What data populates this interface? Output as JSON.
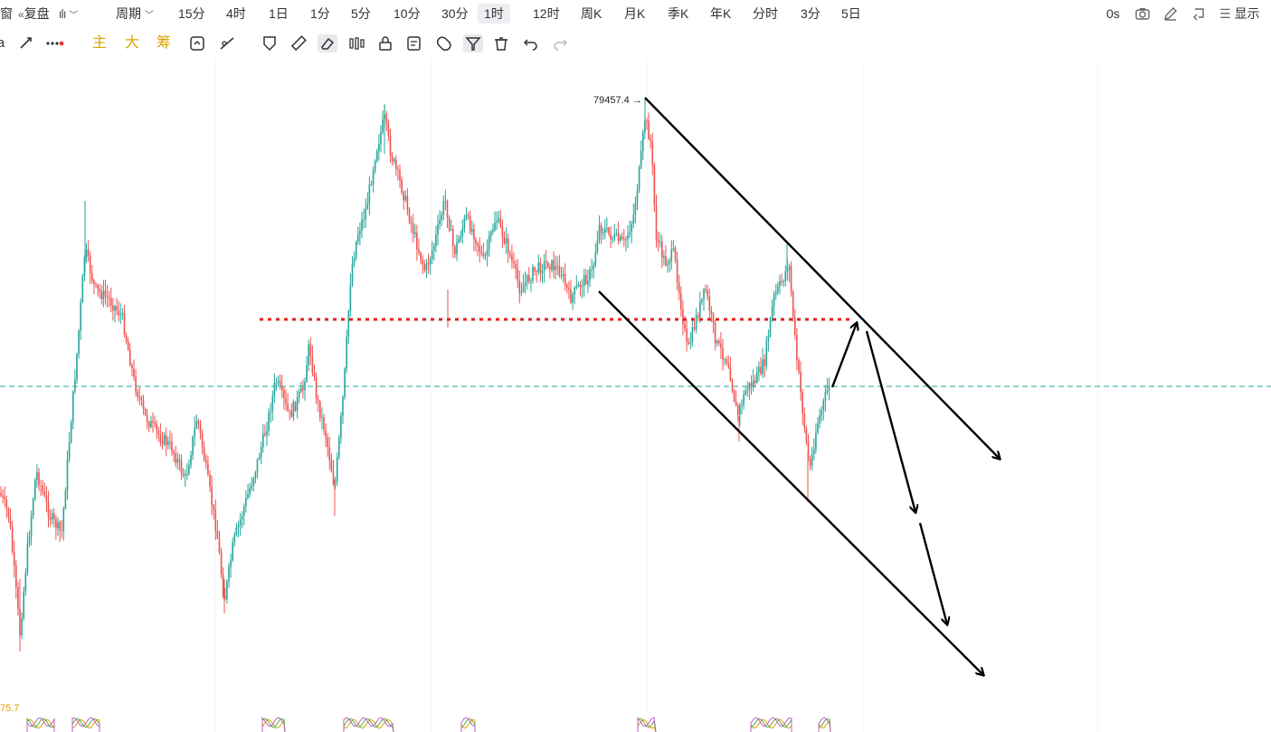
{
  "topbar": {
    "window_label": "窗",
    "replay_label": "复盘",
    "period_label": "周期",
    "intervals": [
      {
        "label": "15分",
        "active": false
      },
      {
        "label": "4时",
        "active": false
      },
      {
        "label": "1日",
        "active": false
      },
      {
        "label": "1分",
        "active": false
      },
      {
        "label": "5分",
        "active": false
      },
      {
        "label": "10分",
        "active": false
      },
      {
        "label": "30分",
        "active": false
      },
      {
        "label": "1时",
        "active": true
      },
      {
        "label": "12时",
        "active": false
      },
      {
        "label": "周K",
        "active": false
      },
      {
        "label": "月K",
        "active": false
      },
      {
        "label": "季K",
        "active": false
      },
      {
        "label": "年K",
        "active": false
      },
      {
        "label": "分时",
        "active": false
      },
      {
        "label": "3分",
        "active": false
      },
      {
        "label": "5日",
        "active": false
      }
    ],
    "countdown": "0s",
    "display_label": "显示"
  },
  "toolbar2": {
    "main_label": "主",
    "large_label": "大",
    "chips_label": "筹"
  },
  "chart": {
    "high_marker": "79457.4",
    "sub_indicator_value": "75.7",
    "colors": {
      "up": "#26a69a",
      "down": "#ef5350",
      "dashed": "#26a69a",
      "red_level": "#e02020",
      "annotation": "#000000"
    }
  }
}
